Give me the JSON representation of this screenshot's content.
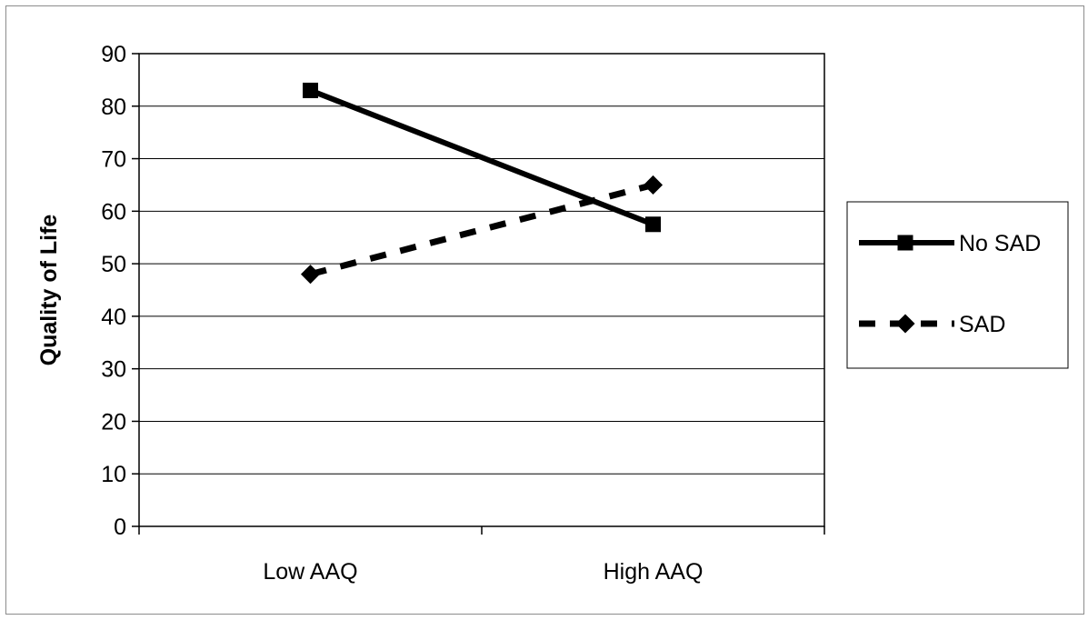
{
  "chart_data": {
    "type": "line",
    "title": "",
    "xlabel": "",
    "ylabel": "Quality of Life",
    "categories": [
      "Low AAQ",
      "High AAQ"
    ],
    "ylim": [
      0,
      90
    ],
    "yticks": [
      0,
      10,
      20,
      30,
      40,
      50,
      60,
      70,
      80,
      90
    ],
    "grid": true,
    "legend_position": "right",
    "series": [
      {
        "name": "No SAD",
        "values": [
          83,
          57.5
        ],
        "line_style": "solid",
        "marker": "square",
        "color": "#000000"
      },
      {
        "name": "SAD",
        "values": [
          48,
          65
        ],
        "line_style": "dashed",
        "marker": "diamond",
        "color": "#000000"
      }
    ]
  }
}
